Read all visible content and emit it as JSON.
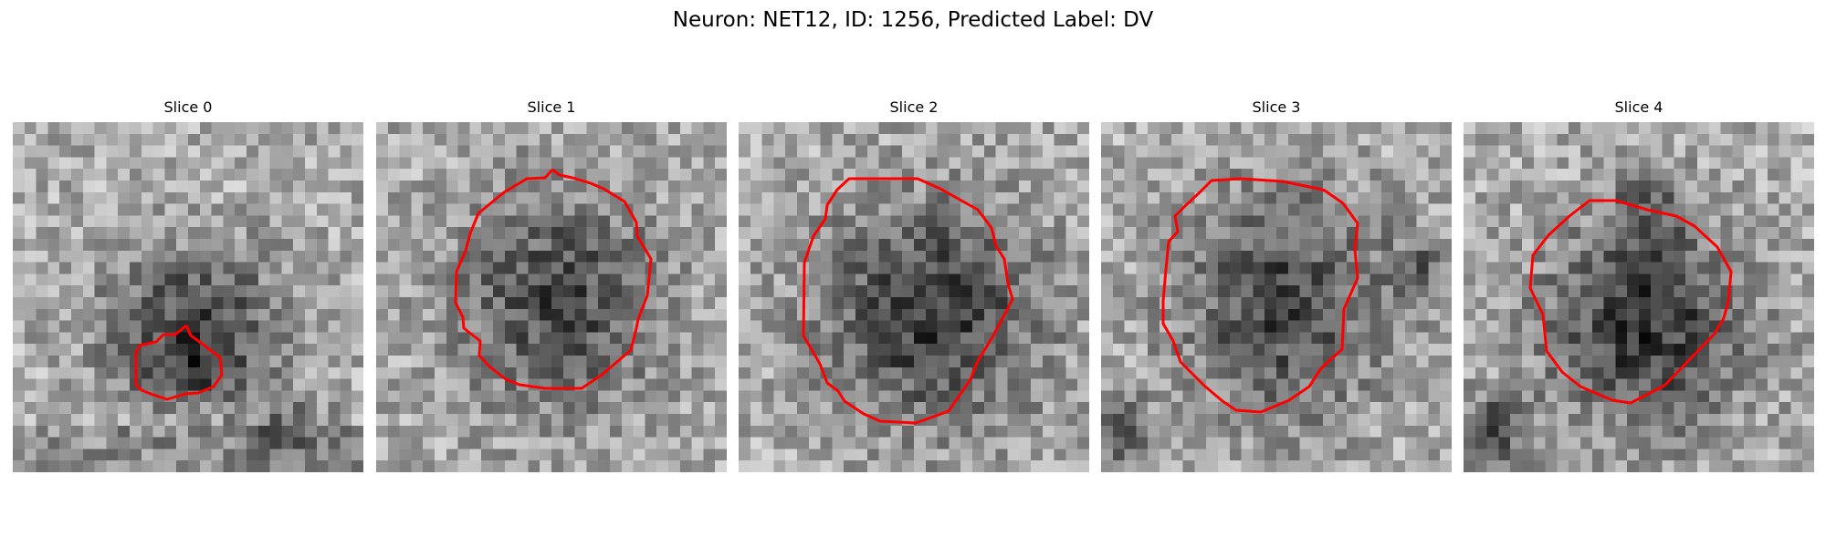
{
  "title": "Neuron: NET12, ID: 1256, Predicted Label: DV",
  "panels": [
    {
      "title": "Slice 0"
    },
    {
      "title": "Slice 1"
    },
    {
      "title": "Slice 2"
    },
    {
      "title": "Slice 3"
    },
    {
      "title": "Slice 4"
    }
  ],
  "colors": {
    "contour": "#ff0000",
    "background": "#ffffff"
  }
}
